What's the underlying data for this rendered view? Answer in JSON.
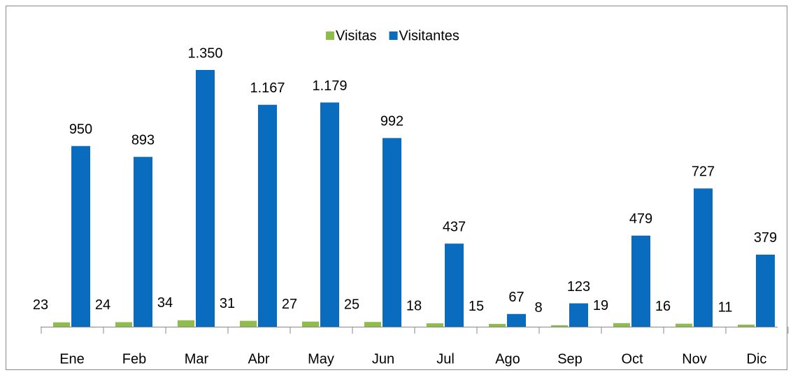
{
  "chart_data": {
    "type": "bar",
    "categories": [
      "Ene",
      "Feb",
      "Mar",
      "Abr",
      "May",
      "Jun",
      "Jul",
      "Ago",
      "Sep",
      "Oct",
      "Nov",
      "Dic"
    ],
    "series": [
      {
        "name": "Visitas",
        "color": "#8fbc4a",
        "values": [
          23,
          24,
          34,
          31,
          27,
          25,
          18,
          15,
          8,
          19,
          16,
          11
        ]
      },
      {
        "name": "Visitantes",
        "color": "#0a6cbf",
        "values": [
          950,
          893,
          1350,
          1167,
          1179,
          992,
          437,
          67,
          123,
          479,
          727,
          379
        ],
        "value_labels": [
          "950",
          "893",
          "1.350",
          "1.167",
          "1.179",
          "992",
          "437",
          "67",
          "123",
          "479",
          "727",
          "379"
        ]
      }
    ],
    "legend": "top"
  }
}
